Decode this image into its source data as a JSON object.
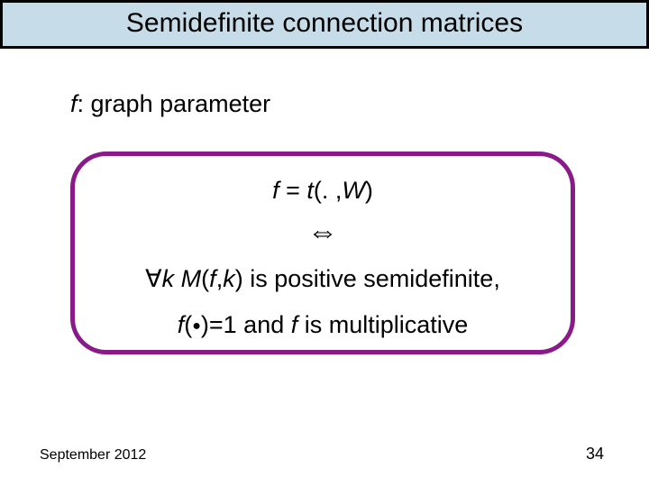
{
  "title": "Semidefinite connection matrices",
  "param": {
    "f": "f",
    "sep": ": ",
    "rest": "graph parameter"
  },
  "box": {
    "eq1_lhs": "f",
    "eq1_mid": " = ",
    "eq1_fn": "t",
    "eq1_open": "(",
    "eq1_dot": ". ,",
    "eq1_W": "W",
    "eq1_close": ")",
    "arrow": "⇔",
    "forall": "∀",
    "k1": "k ",
    "M": "M",
    "paren_open": "(",
    "f2": "f",
    "comma": ",",
    "k2": "k",
    "paren_close": ")",
    "psd_text": " is positive semidefinite,",
    "f3": "f",
    "bullet_open": "(",
    "bullet": "●",
    "bullet_close": ")",
    "equals1": "=1",
    "and": " and  ",
    "f4": "f ",
    "mult_text": " is multiplicative"
  },
  "footer": {
    "date": "September 2012",
    "page": "34"
  },
  "colors": {
    "title_bg": "#c6dde9",
    "title_border": "#000000",
    "box_border": "#8a1a8a",
    "background": "#ffffff",
    "text": "#000000"
  }
}
